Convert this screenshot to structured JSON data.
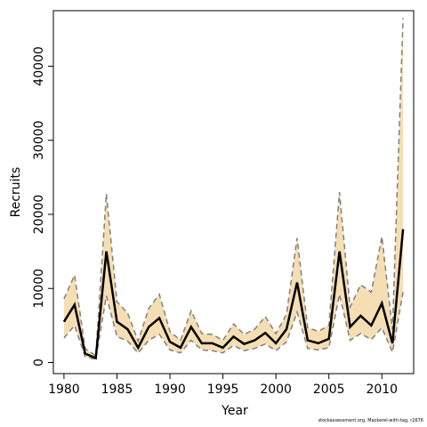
{
  "chart_data": {
    "type": "line",
    "title": "",
    "xlabel": "Year",
    "ylabel": "Recruits",
    "xlim": [
      1979,
      2013
    ],
    "ylim": [
      -1500,
      47500
    ],
    "x_ticks": [
      1980,
      1985,
      1990,
      1995,
      2000,
      2005,
      2010
    ],
    "y_ticks": [
      0,
      10000,
      20000,
      30000,
      40000
    ],
    "x_tick_labels": [
      "1980",
      "1985",
      "1990",
      "1995",
      "2000",
      "2005",
      "2010"
    ],
    "y_tick_labels": [
      "0",
      "10000",
      "20000",
      "30000",
      "40000"
    ],
    "grid": false,
    "x": [
      1980,
      1981,
      1982,
      1983,
      1984,
      1985,
      1986,
      1987,
      1988,
      1989,
      1990,
      1991,
      1992,
      1993,
      1994,
      1995,
      1996,
      1997,
      1998,
      1999,
      2000,
      2001,
      2002,
      2003,
      2004,
      2005,
      2006,
      2007,
      2008,
      2009,
      2010,
      2011,
      2012
    ],
    "series": [
      {
        "role": "estimate",
        "values": [
          5500,
          7800,
          1200,
          600,
          15000,
          5500,
          4500,
          2000,
          4800,
          6000,
          2800,
          2000,
          4800,
          2600,
          2600,
          2000,
          3500,
          2500,
          3000,
          4000,
          2600,
          4500,
          10800,
          3000,
          2600,
          3200,
          15000,
          4800,
          6300,
          5000,
          8000,
          2600,
          18000
        ],
        "color": "#000000"
      },
      {
        "role": "lower",
        "values": [
          3300,
          5000,
          800,
          400,
          9000,
          3500,
          2900,
          1300,
          3000,
          3800,
          1700,
          1300,
          3000,
          1700,
          1600,
          1300,
          2300,
          1600,
          1900,
          2500,
          1600,
          2800,
          6800,
          1900,
          1700,
          2000,
          9200,
          3000,
          3900,
          3100,
          4700,
          1400,
          9500
        ],
        "color": "#808080"
      },
      {
        "role": "upper",
        "values": [
          8600,
          11800,
          1900,
          900,
          22800,
          8200,
          6700,
          2900,
          7300,
          9200,
          4200,
          3000,
          7000,
          3900,
          3800,
          3000,
          5200,
          3800,
          4500,
          6200,
          3900,
          6500,
          16800,
          4700,
          4200,
          5000,
          23000,
          7500,
          10500,
          9500,
          17000,
          4500,
          46500
        ],
        "color": "#808080"
      }
    ],
    "band_color": "#f5deb3"
  },
  "footer": "stockassessment.org, Mackerel-with-tag, r2676"
}
